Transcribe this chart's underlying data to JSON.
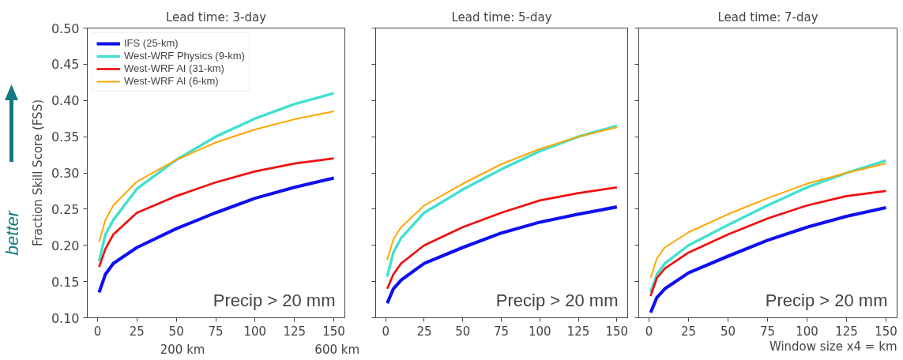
{
  "chart_data": [
    {
      "type": "line",
      "title": "Lead time: 3-day",
      "ylabel": "Fraction Skill Score (FSS)",
      "x": [
        1,
        5,
        10,
        25,
        50,
        75,
        100,
        125,
        150
      ],
      "xlim": [
        -6.5,
        157
      ],
      "ylim": [
        0.1,
        0.5
      ],
      "xticks": [
        0,
        25,
        50,
        75,
        100,
        125,
        150
      ],
      "yticks": [
        {
          "value": 0.1,
          "label": "0.10"
        },
        0.15,
        {
          "value": 0.2,
          "label": "0.20"
        },
        0.25,
        {
          "value": 0.3,
          "label": "0.30"
        },
        0.35,
        {
          "value": 0.4,
          "label": "0.40"
        },
        0.45,
        {
          "value": 0.5,
          "label": "0.50"
        }
      ],
      "grid": false,
      "legend": "top left",
      "line_style": "solid",
      "annotations": [
        "better",
        "Precip > 20 mm",
        "200 km",
        "600 km"
      ],
      "series": [
        {
          "name": "IFS (25-km)",
          "color": "#0f0ff0",
          "values": [
            0.135,
            0.16,
            0.175,
            0.197,
            0.223,
            0.245,
            0.265,
            0.28,
            0.293
          ]
        },
        {
          "name": "West-WRF Physics (9-km)",
          "color": "#40e0d0",
          "values": [
            0.178,
            0.215,
            0.235,
            0.278,
            0.318,
            0.35,
            0.375,
            0.395,
            0.41
          ]
        },
        {
          "name": "West-WRF AI (31-km)",
          "color": "#f01010",
          "values": [
            0.17,
            0.195,
            0.215,
            0.245,
            0.268,
            0.287,
            0.302,
            0.313,
            0.32
          ]
        },
        {
          "name": "West-WRF AI (6-km)",
          "color": "#ffa500",
          "values": [
            0.205,
            0.235,
            0.255,
            0.288,
            0.318,
            0.342,
            0.36,
            0.374,
            0.385
          ]
        }
      ]
    },
    {
      "type": "line",
      "title": "Lead time: 5-day",
      "x": [
        1,
        5,
        10,
        25,
        50,
        75,
        100,
        125,
        150
      ],
      "xlim": [
        -6.5,
        157
      ],
      "ylim": [
        0.1,
        0.5
      ],
      "xticks": [
        0,
        25,
        50,
        75,
        100,
        125,
        150
      ],
      "yticks": [
        0.1,
        0.15,
        0.2,
        0.25,
        0.3,
        0.35,
        0.4,
        0.45,
        0.5
      ],
      "grid": false,
      "tick_labels": "x",
      "line_style": "solid",
      "annotations": [
        "Precip > 20 mm"
      ],
      "series": [
        {
          "color": "#0f0ff0",
          "values": [
            0.12,
            0.14,
            0.152,
            0.175,
            0.197,
            0.217,
            0.232,
            0.243,
            0.253
          ]
        },
        {
          "color": "#40e0d0",
          "values": [
            0.157,
            0.19,
            0.21,
            0.245,
            0.277,
            0.305,
            0.33,
            0.35,
            0.365
          ]
        },
        {
          "color": "#f01010",
          "values": [
            0.14,
            0.16,
            0.175,
            0.2,
            0.225,
            0.245,
            0.262,
            0.272,
            0.28
          ]
        },
        {
          "color": "#ffa500",
          "values": [
            0.18,
            0.208,
            0.225,
            0.255,
            0.285,
            0.312,
            0.333,
            0.35,
            0.363
          ]
        }
      ]
    },
    {
      "type": "line",
      "title": "Lead time: 7-day",
      "xlabel": "Window size x4 = km",
      "x": [
        1,
        5,
        10,
        25,
        50,
        75,
        100,
        125,
        150
      ],
      "xlim": [
        -6.5,
        157
      ],
      "ylim": [
        0.1,
        0.5
      ],
      "xticks": [
        0,
        25,
        50,
        75,
        100,
        125,
        150
      ],
      "yticks": [
        0.1,
        0.15,
        0.2,
        0.25,
        0.3,
        0.35,
        0.4,
        0.45,
        0.5
      ],
      "grid": false,
      "tick_labels": "x",
      "line_style": "solid",
      "annotations": [
        "Precip > 20 mm"
      ],
      "series": [
        {
          "color": "#0f0ff0",
          "values": [
            0.107,
            0.128,
            0.14,
            0.162,
            0.185,
            0.207,
            0.225,
            0.24,
            0.252
          ]
        },
        {
          "color": "#40e0d0",
          "values": [
            0.135,
            0.16,
            0.175,
            0.2,
            0.228,
            0.255,
            0.28,
            0.3,
            0.317
          ]
        },
        {
          "color": "#f01010",
          "values": [
            0.13,
            0.155,
            0.168,
            0.19,
            0.215,
            0.237,
            0.255,
            0.268,
            0.275
          ]
        },
        {
          "color": "#ffa500",
          "values": [
            0.155,
            0.182,
            0.197,
            0.218,
            0.243,
            0.265,
            0.285,
            0.3,
            0.313
          ]
        }
      ]
    }
  ]
}
